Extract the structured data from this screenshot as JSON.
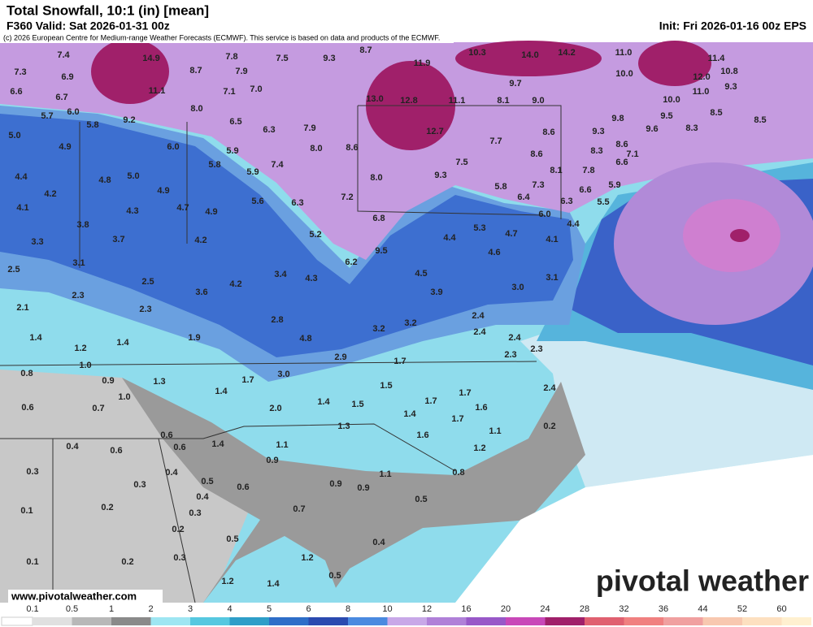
{
  "header": {
    "title": "Total Snowfall, 10:1 (in) [mean]",
    "valid": "F360 Valid: Sat 2026-01-31 00z",
    "init": "Init: Fri 2026-01-16 00z EPS",
    "credit": "(c) 2026 European Centre for Medium-range Weather Forecasts (ECMWF). This service is based on data and products of the ECMWF."
  },
  "map": {
    "labels": [
      "7.4",
      "14.9",
      "7.8",
      "7.5",
      "9.3",
      "8.7",
      "11.9",
      "10.3",
      "14.0",
      "14.2",
      "11.0",
      "11.4",
      "7.3",
      "6.9",
      "8.7",
      "7.9",
      "10.0",
      "10.8",
      "12.0",
      "6.6",
      "6.7",
      "11.1",
      "7.1",
      "7.0",
      "9.7",
      "11.0",
      "9.3",
      "6.0",
      "8.0",
      "13.0",
      "12.8",
      "11.1",
      "8.1",
      "9.0",
      "10.0",
      "5.7",
      "5.8",
      "9.2",
      "6.5",
      "6.3",
      "7.9",
      "9.8",
      "9.5",
      "8.5",
      "8.5",
      "5.0",
      "12.7",
      "8.6",
      "9.3",
      "9.6",
      "8.3",
      "4.9",
      "6.0",
      "5.9",
      "8.0",
      "8.6",
      "7.7",
      "8.6",
      "8.3",
      "8.6",
      "7.1",
      "5.8",
      "7.4",
      "7.5",
      "8.1",
      "7.8",
      "6.6",
      "4.4",
      "4.8",
      "5.0",
      "5.9",
      "8.0",
      "9.3",
      "5.8",
      "7.3",
      "5.9",
      "4.2",
      "4.9",
      "6.3",
      "7.2",
      "6.4",
      "6.3",
      "6.6",
      "5.5",
      "4.1",
      "4.3",
      "4.7",
      "4.9",
      "5.6",
      "6.8",
      "6.0",
      "4.4",
      "3.8",
      "5.3",
      "4.7",
      "4.1",
      "3.3",
      "3.7",
      "4.2",
      "5.2",
      "4.4",
      "3.1",
      "6.2",
      "9.5",
      "4.6",
      "2.5",
      "3.4",
      "4.3",
      "4.5",
      "3.1",
      "2.5",
      "3.6",
      "4.2",
      "3.9",
      "3.0",
      "2.3",
      "2.1",
      "2.3",
      "2.8",
      "2.4",
      "1.4",
      "1.9",
      "4.8",
      "3.2",
      "3.2",
      "2.4",
      "2.4",
      "1.2",
      "1.4",
      "2.9",
      "1.7",
      "2.3",
      "2.3",
      "1.0",
      "0.8",
      "3.0",
      "1.7",
      "1.5",
      "0.9",
      "1.3",
      "1.4",
      "1.7",
      "1.7",
      "2.4",
      "1.0",
      "0.6",
      "0.7",
      "2.0",
      "1.4",
      "1.5",
      "1.6",
      "1.4",
      "1.7",
      "1.3",
      "1.1",
      "0.2",
      "1.6",
      "0.6",
      "1.4",
      "1.1",
      "1.2",
      "0.4",
      "0.6",
      "0.6",
      "0.9",
      "0.3",
      "0.4",
      "0.8",
      "1.1",
      "0.3",
      "0.5",
      "0.6",
      "0.9",
      "0.9",
      "0.4",
      "0.5",
      "0.1",
      "0.2",
      "0.3",
      "0.7",
      "0.2",
      "0.5",
      "0.4",
      "0.3",
      "1.2",
      "0.1",
      "0.2",
      "0.5",
      "1.2",
      "1.4"
    ]
  },
  "colorbar": {
    "ticks": [
      "0.1",
      "0.5",
      "1",
      "2",
      "3",
      "4",
      "5",
      "6",
      "8",
      "10",
      "12",
      "16",
      "20",
      "24",
      "28",
      "32",
      "36",
      "44",
      "52",
      "60"
    ]
  },
  "footer": {
    "website": "www.pivotalweather.com",
    "logo": "pivotal weather"
  }
}
